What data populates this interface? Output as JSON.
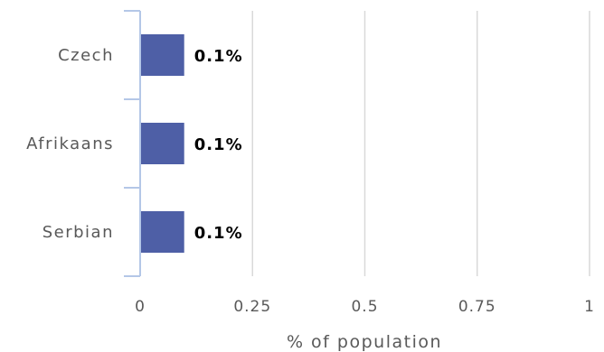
{
  "chart_data": {
    "type": "bar",
    "orientation": "horizontal",
    "categories": [
      "Czech",
      "Afrikaans",
      "Serbian"
    ],
    "values": [
      0.1,
      0.1,
      0.1
    ],
    "data_labels": [
      "0.1%",
      "0.1%",
      "0.1%"
    ],
    "xlabel": "% of population",
    "xlim": [
      0,
      1
    ],
    "xticks": [
      0,
      0.25,
      0.5,
      0.75,
      1
    ],
    "xtick_labels": [
      "0",
      "0.25",
      "0.5",
      "0.75",
      "1"
    ],
    "grid": true,
    "bar_color": "#4e5fa6"
  }
}
